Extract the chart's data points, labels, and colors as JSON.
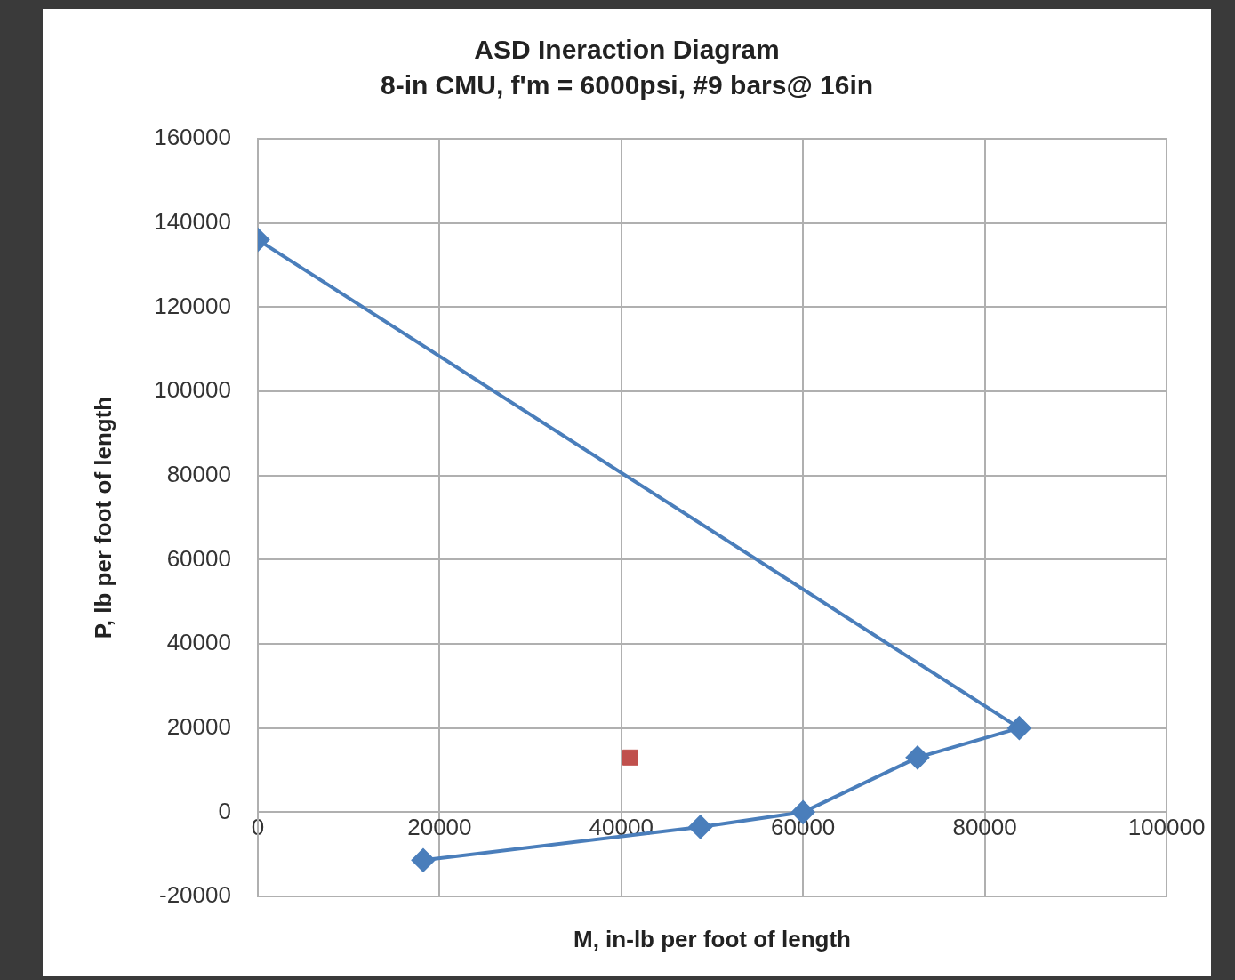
{
  "chart_data": {
    "type": "line",
    "title": "ASD Ineraction Diagram",
    "subtitle": "8-in CMU, f'm = 6000psi, #9 bars@ 16in",
    "xlabel": "M, in-lb per foot of length",
    "ylabel": "P, lb per foot of length",
    "series": [
      {
        "color": "#4a7ebb",
        "marker": "diamond",
        "x": [
          0,
          83800,
          72600,
          60000,
          48700,
          18200
        ],
        "values": [
          136000,
          20000,
          13000,
          0,
          -3500,
          -11400
        ]
      },
      {
        "type": "scatter",
        "color": "#c0504d",
        "marker": "square",
        "x": [
          41000
        ],
        "values": [
          13000
        ]
      }
    ],
    "xlim": [
      0,
      100000
    ],
    "xticks": [
      0,
      20000,
      40000,
      60000,
      80000,
      100000
    ],
    "ylim": [
      -20000,
      160000
    ],
    "yticks": [
      -20000,
      0,
      20000,
      40000,
      60000,
      80000,
      100000,
      120000,
      140000,
      160000
    ],
    "grid": true,
    "legend": false
  }
}
